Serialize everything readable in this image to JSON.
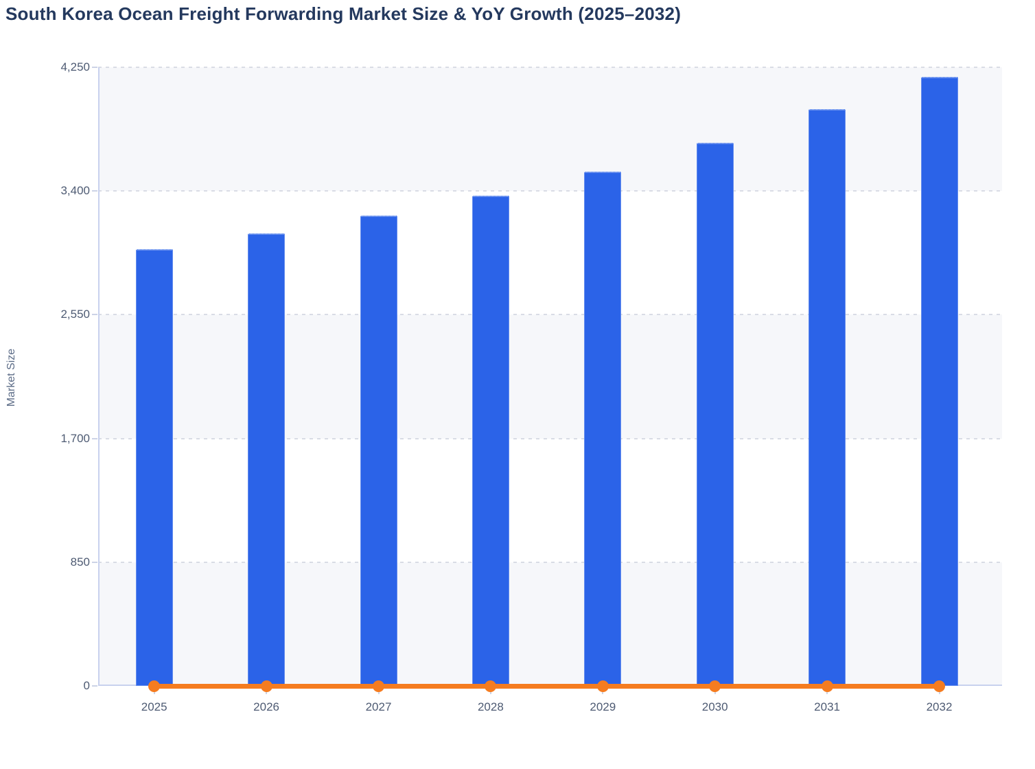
{
  "chart_data": {
    "type": "bar",
    "title": "South Korea Ocean Freight Forwarding Market Size & YoY Growth (2025–2032)",
    "ylabel": "Market Size",
    "xlabel": "",
    "categories": [
      "2025",
      "2026",
      "2027",
      "2028",
      "2029",
      "2030",
      "2031",
      "2032"
    ],
    "series": [
      {
        "name": "Market Size",
        "type": "bar",
        "color": "#2b63e8",
        "values": [
          3000,
          3110,
          3230,
          3370,
          3535,
          3730,
          3960,
          4185
        ],
        "note": "No numeric data labels are shown on the bars; values are read from bar heights against the axis."
      },
      {
        "name": "YoY Growth",
        "type": "line",
        "color": "#f57c20",
        "values": [
          0,
          0,
          0,
          0,
          0,
          0,
          0,
          0
        ],
        "note": "YoY Growth is drawn on the same 0–4,250 axis, so the orange line renders flat at ≈0 with a round marker at every year; no growth numbers are visible."
      }
    ],
    "ylim": [
      0,
      4250
    ],
    "yticks": [
      0,
      850,
      1700,
      2550,
      3400,
      4250
    ],
    "ytick_labels": [
      "0",
      "850",
      "1,700",
      "2,550",
      "3,400",
      "4,250"
    ],
    "grid": {
      "horizontal_dashed_lines": true,
      "alternating_horizontal_bands": true,
      "band_color": "#f6f7fa",
      "gridline_color": "#d9dce5"
    },
    "legend": "none",
    "colors": {
      "title_text": "#24395e",
      "tick_text": "#4e5b73",
      "axis_label_text": "#5c6c87",
      "axis_line": "#c8d1ee",
      "tick_mark": "#ccd3e6",
      "bar": "#2b63e8",
      "line": "#f57c20",
      "background": "#ffffff"
    }
  }
}
